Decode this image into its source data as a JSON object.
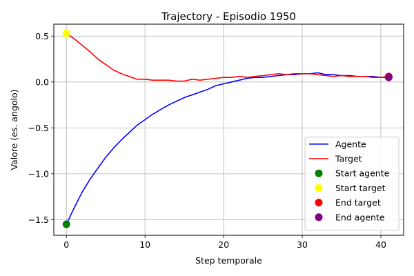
{
  "chart_data": {
    "type": "line",
    "title": "Trajectory - Episodio 1950",
    "xlabel": "Step temporale",
    "ylabel": "Valore (es. angolo)",
    "xlim": [
      -1.6,
      42.9
    ],
    "ylim": [
      -1.67,
      0.63
    ],
    "xticks": [
      0,
      10,
      20,
      30,
      40
    ],
    "yticks": [
      -1.5,
      -1.0,
      -0.5,
      0.0,
      0.5
    ],
    "grid": true,
    "legend_position": "lower-right",
    "series": [
      {
        "name": "Agente",
        "color": "#0000ff",
        "x": [
          0,
          1,
          2,
          3,
          4,
          5,
          6,
          7,
          8,
          9,
          10,
          11,
          12,
          13,
          14,
          15,
          16,
          17,
          18,
          19,
          20,
          21,
          22,
          23,
          24,
          25,
          26,
          27,
          28,
          29,
          30,
          31,
          32,
          33,
          34,
          35,
          36,
          37,
          38,
          39,
          40,
          41
        ],
        "y": [
          -1.55,
          -1.37,
          -1.2,
          -1.06,
          -0.94,
          -0.82,
          -0.72,
          -0.63,
          -0.55,
          -0.47,
          -0.41,
          -0.35,
          -0.3,
          -0.25,
          -0.21,
          -0.17,
          -0.14,
          -0.11,
          -0.08,
          -0.04,
          -0.02,
          0.0,
          0.02,
          0.04,
          0.05,
          0.05,
          0.06,
          0.07,
          0.08,
          0.08,
          0.09,
          0.09,
          0.1,
          0.08,
          0.08,
          0.07,
          0.07,
          0.06,
          0.06,
          0.06,
          0.05,
          0.05
        ]
      },
      {
        "name": "Target",
        "color": "#ff0000",
        "x": [
          0,
          1,
          2,
          3,
          4,
          5,
          6,
          7,
          8,
          9,
          10,
          11,
          12,
          13,
          14,
          15,
          16,
          17,
          18,
          19,
          20,
          21,
          22,
          23,
          24,
          25,
          26,
          27,
          28,
          29,
          30,
          31,
          32,
          33,
          34,
          35,
          36,
          37,
          38,
          39,
          40,
          41
        ],
        "y": [
          0.53,
          0.47,
          0.4,
          0.33,
          0.25,
          0.19,
          0.13,
          0.09,
          0.06,
          0.03,
          0.03,
          0.02,
          0.02,
          0.02,
          0.01,
          0.01,
          0.03,
          0.02,
          0.03,
          0.04,
          0.05,
          0.05,
          0.06,
          0.05,
          0.06,
          0.07,
          0.08,
          0.09,
          0.08,
          0.09,
          0.09,
          0.09,
          0.08,
          0.07,
          0.06,
          0.07,
          0.06,
          0.06,
          0.06,
          0.05,
          0.05,
          0.06
        ]
      }
    ],
    "markers": [
      {
        "name": "Start agente",
        "color": "#008000",
        "x": 0,
        "y": -1.55
      },
      {
        "name": "Start target",
        "color": "#ffff00",
        "x": 0,
        "y": 0.53
      },
      {
        "name": "End target",
        "color": "#ff0000",
        "x": 41,
        "y": 0.06
      },
      {
        "name": "End agente",
        "color": "#800080",
        "x": 41,
        "y": 0.05
      }
    ]
  }
}
